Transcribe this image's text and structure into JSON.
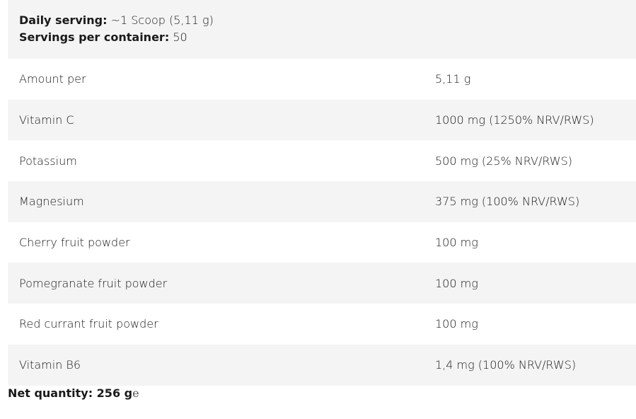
{
  "header": {
    "daily_serving_label": "Daily serving:",
    "daily_serving_value": "~1 Scoop (5,11 g)",
    "servings_label": "Servings per container:",
    "servings_value": "50"
  },
  "rows": [
    {
      "name": "Amount per",
      "value": "5,11 g"
    },
    {
      "name": "Vitamin C",
      "value": "1000 mg (1250% NRV/RWS)"
    },
    {
      "name": "Potassium",
      "value": "500 mg (25% NRV/RWS)"
    },
    {
      "name": "Magnesium",
      "value": "375 mg (100% NRV/RWS)"
    },
    {
      "name": "Cherry fruit powder",
      "value": "100 mg"
    },
    {
      "name": "Pomegranate fruit powder",
      "value": "100 mg"
    },
    {
      "name": "Red currant fruit powder",
      "value": "100 mg"
    },
    {
      "name": "Vitamin B6",
      "value": "1,4 mg (100% NRV/RWS)"
    }
  ],
  "footer": {
    "net_quantity_label": "Net quantity: 256 g",
    "trailing": "e"
  }
}
